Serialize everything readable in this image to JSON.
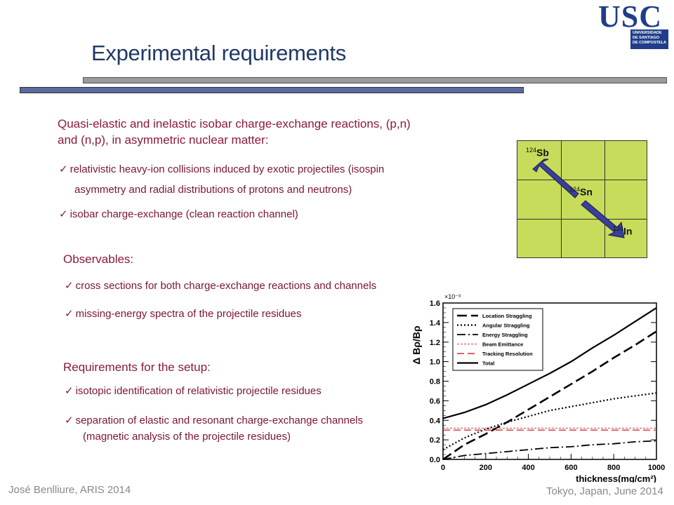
{
  "slide": {
    "title": "Experimental requirements",
    "intro_line1": "Quasi-elastic and inelastic isobar charge-exchange reactions, (p,n)",
    "intro_line2": "and (n,p), in asymmetric nuclear matter:",
    "bullet1_line1": "relativistic heavy-ion collisions induced by exotic projectiles (isospin",
    "bullet1_line2": "asymmetry and radial distributions of protons and neutrons)",
    "bullet2": "isobar charge-exchange (clean reaction channel)",
    "observables_heading": "Observables:",
    "obs1": "cross sections for both charge-exchange reactions and channels",
    "obs2": "missing-energy spectra of the projectile residues",
    "requirements_heading": "Requirements for the setup:",
    "req1": "isotopic identification of relativistic projectile residues",
    "req2_line1": "separation of elastic and resonant charge-exchange channels",
    "req2_line2": "(magnetic analysis of the projectile residues)",
    "footer_left": "José Benlliure, ARIS 2014",
    "footer_right": "Tokyo, Japan, June 2014",
    "check_symbol": "✓"
  },
  "logo": {
    "text": "USC",
    "line1": "UNIVERSIDADE",
    "line2": "DE SANTIAGO",
    "line3": "DE COMPOSTELA"
  },
  "isobar_diagram": {
    "sb_mass": "124",
    "sb_symbol": "Sb",
    "sn_mass": "124",
    "sn_symbol": "Sn",
    "in_mass": "124",
    "in_symbol": "In",
    "cell_color": "#c6dc5a",
    "arrow_color": "#3a3f9a"
  },
  "chart_data": {
    "type": "line",
    "ylabel": "Δ Bρ/Bρ",
    "xlabel": "thickness(mg/cm²)",
    "multiplier": "×10⁻³",
    "xlim": [
      0,
      1000
    ],
    "ylim": [
      0,
      1.6
    ],
    "xticks": [
      "0",
      "200",
      "400",
      "600",
      "800",
      "1000"
    ],
    "yticks": [
      "0.0",
      "0.2",
      "0.4",
      "0.6",
      "0.8",
      "1.0",
      "1.2",
      "1.4",
      "1.6"
    ],
    "legend_position": "top-left",
    "series": [
      {
        "name": "Location Straggling",
        "style": "long-dash",
        "color": "#000000",
        "x": [
          0,
          100,
          200,
          300,
          400,
          500,
          600,
          700,
          800,
          900,
          1000
        ],
        "y": [
          0.0,
          0.15,
          0.26,
          0.38,
          0.51,
          0.64,
          0.77,
          0.9,
          1.04,
          1.17,
          1.31
        ]
      },
      {
        "name": "Angular Straggling",
        "style": "dotted",
        "color": "#000000",
        "x": [
          0,
          100,
          200,
          300,
          400,
          500,
          600,
          700,
          800,
          900,
          1000
        ],
        "y": [
          0.1,
          0.22,
          0.31,
          0.38,
          0.44,
          0.5,
          0.54,
          0.58,
          0.62,
          0.65,
          0.68
        ]
      },
      {
        "name": "Energy Straggling",
        "style": "dash-dot",
        "color": "#000000",
        "x": [
          0,
          100,
          200,
          300,
          400,
          500,
          600,
          700,
          800,
          900,
          1000
        ],
        "y": [
          0.0,
          0.04,
          0.06,
          0.08,
          0.1,
          0.12,
          0.13,
          0.15,
          0.16,
          0.18,
          0.19
        ]
      },
      {
        "name": "Beam Emittance",
        "style": "fine-dash",
        "color": "#e04040",
        "x": [
          0,
          1000
        ],
        "y": [
          0.32,
          0.32
        ]
      },
      {
        "name": "Tracking Resolution",
        "style": "dash",
        "color": "#c83030",
        "x": [
          0,
          1000
        ],
        "y": [
          0.3,
          0.3
        ]
      },
      {
        "name": "Total",
        "style": "solid",
        "color": "#000000",
        "x": [
          0,
          100,
          200,
          300,
          400,
          500,
          600,
          700,
          800,
          900,
          1000
        ],
        "y": [
          0.42,
          0.48,
          0.56,
          0.66,
          0.77,
          0.88,
          1.0,
          1.14,
          1.27,
          1.41,
          1.55
        ]
      }
    ]
  }
}
